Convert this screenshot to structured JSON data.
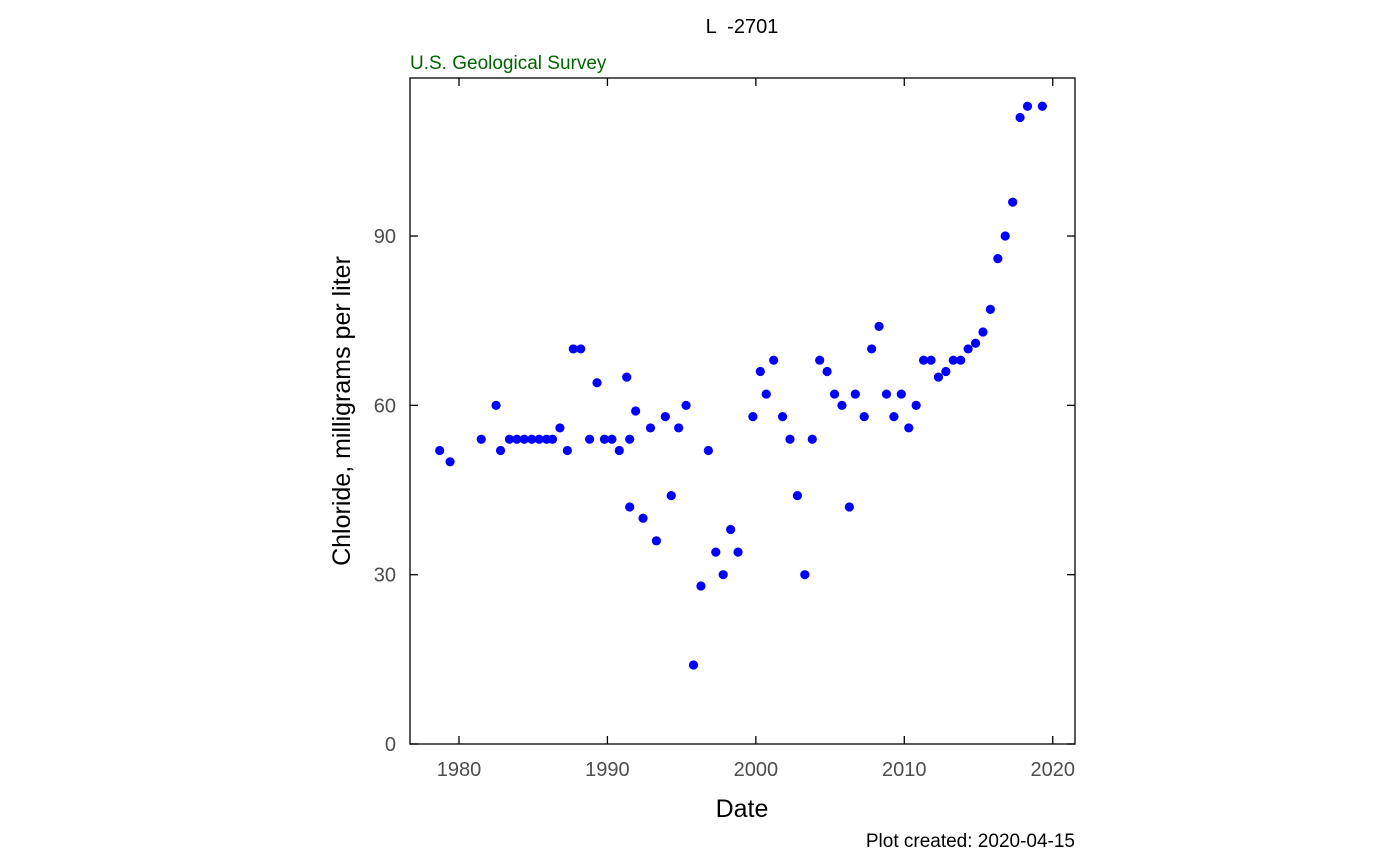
{
  "chart_data": {
    "type": "scatter",
    "title": "L  -2701",
    "subtitle": "U.S. Geological Survey",
    "xlabel": "Date",
    "ylabel": "Chloride, milligrams per liter",
    "footer": "Plot created: 2020-04-15",
    "xlim": [
      1976.7,
      2021.5
    ],
    "ylim": [
      0,
      118
    ],
    "x_ticks": [
      1980,
      1990,
      2000,
      2010,
      2020
    ],
    "x_tick_labels": [
      "1980",
      "1990",
      "2000",
      "2010",
      "2020"
    ],
    "y_ticks": [
      0,
      30,
      60,
      90
    ],
    "y_tick_labels": [
      "0",
      "30",
      "60",
      "90"
    ],
    "grid": false,
    "colors": {
      "points": "#0000ff",
      "subtitle": "#006400",
      "axis": "#000000",
      "tick_label": "#4d4d4d"
    },
    "points": [
      {
        "x": 1978.7,
        "y": 52
      },
      {
        "x": 1979.4,
        "y": 50
      },
      {
        "x": 1981.5,
        "y": 54
      },
      {
        "x": 1982.5,
        "y": 60
      },
      {
        "x": 1982.8,
        "y": 52
      },
      {
        "x": 1983.4,
        "y": 54
      },
      {
        "x": 1983.9,
        "y": 54
      },
      {
        "x": 1984.4,
        "y": 54
      },
      {
        "x": 1984.9,
        "y": 54
      },
      {
        "x": 1985.4,
        "y": 54
      },
      {
        "x": 1985.9,
        "y": 54
      },
      {
        "x": 1986.3,
        "y": 54
      },
      {
        "x": 1986.8,
        "y": 56
      },
      {
        "x": 1987.3,
        "y": 52
      },
      {
        "x": 1987.7,
        "y": 70
      },
      {
        "x": 1988.2,
        "y": 70
      },
      {
        "x": 1988.8,
        "y": 54
      },
      {
        "x": 1989.3,
        "y": 64
      },
      {
        "x": 1989.8,
        "y": 54
      },
      {
        "x": 1990.3,
        "y": 54
      },
      {
        "x": 1990.8,
        "y": 52
      },
      {
        "x": 1991.3,
        "y": 65
      },
      {
        "x": 1991.5,
        "y": 42
      },
      {
        "x": 1991.5,
        "y": 54
      },
      {
        "x": 1991.9,
        "y": 59
      },
      {
        "x": 1992.4,
        "y": 40
      },
      {
        "x": 1992.9,
        "y": 56
      },
      {
        "x": 1993.3,
        "y": 36
      },
      {
        "x": 1993.9,
        "y": 58
      },
      {
        "x": 1994.3,
        "y": 44
      },
      {
        "x": 1994.8,
        "y": 56
      },
      {
        "x": 1995.3,
        "y": 60
      },
      {
        "x": 1995.8,
        "y": 14
      },
      {
        "x": 1996.3,
        "y": 28
      },
      {
        "x": 1996.8,
        "y": 52
      },
      {
        "x": 1997.3,
        "y": 34
      },
      {
        "x": 1997.8,
        "y": 30
      },
      {
        "x": 1998.3,
        "y": 38
      },
      {
        "x": 1998.8,
        "y": 34
      },
      {
        "x": 1999.8,
        "y": 58
      },
      {
        "x": 2000.3,
        "y": 66
      },
      {
        "x": 2000.7,
        "y": 62
      },
      {
        "x": 2001.2,
        "y": 68
      },
      {
        "x": 2001.8,
        "y": 58
      },
      {
        "x": 2002.3,
        "y": 54
      },
      {
        "x": 2002.8,
        "y": 44
      },
      {
        "x": 2003.3,
        "y": 30
      },
      {
        "x": 2003.8,
        "y": 54
      },
      {
        "x": 2004.3,
        "y": 68
      },
      {
        "x": 2004.8,
        "y": 66
      },
      {
        "x": 2005.3,
        "y": 62
      },
      {
        "x": 2005.8,
        "y": 60
      },
      {
        "x": 2006.3,
        "y": 42
      },
      {
        "x": 2006.7,
        "y": 62
      },
      {
        "x": 2007.3,
        "y": 58
      },
      {
        "x": 2007.8,
        "y": 70
      },
      {
        "x": 2008.3,
        "y": 74
      },
      {
        "x": 2008.8,
        "y": 62
      },
      {
        "x": 2009.3,
        "y": 58
      },
      {
        "x": 2009.8,
        "y": 62
      },
      {
        "x": 2010.3,
        "y": 56
      },
      {
        "x": 2010.8,
        "y": 60
      },
      {
        "x": 2011.3,
        "y": 68
      },
      {
        "x": 2011.8,
        "y": 68
      },
      {
        "x": 2012.3,
        "y": 65
      },
      {
        "x": 2012.8,
        "y": 66
      },
      {
        "x": 2013.3,
        "y": 68
      },
      {
        "x": 2013.8,
        "y": 68
      },
      {
        "x": 2014.3,
        "y": 70
      },
      {
        "x": 2014.8,
        "y": 71
      },
      {
        "x": 2015.3,
        "y": 73
      },
      {
        "x": 2015.8,
        "y": 77
      },
      {
        "x": 2016.3,
        "y": 86
      },
      {
        "x": 2016.8,
        "y": 90
      },
      {
        "x": 2017.3,
        "y": 96
      },
      {
        "x": 2017.8,
        "y": 111
      },
      {
        "x": 2018.3,
        "y": 113
      },
      {
        "x": 2019.3,
        "y": 113
      }
    ]
  }
}
